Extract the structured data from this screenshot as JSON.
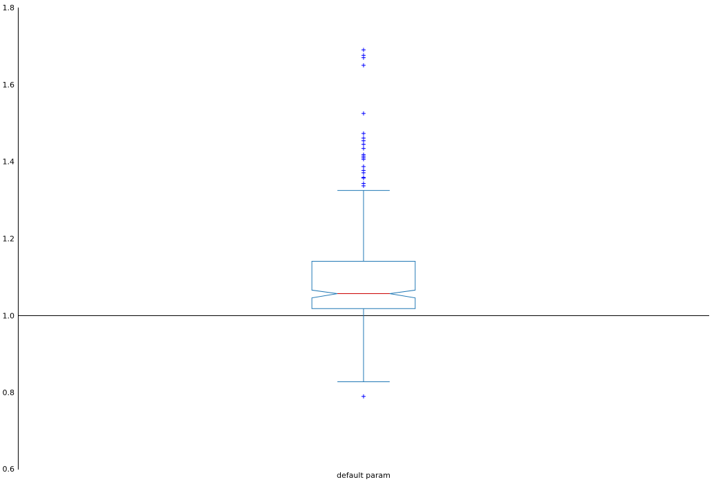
{
  "chart_data": {
    "type": "boxplot",
    "title": "",
    "xlabel": "",
    "ylabel": "",
    "ylim": [
      0.6,
      1.8
    ],
    "yticks": [
      0.6,
      0.8,
      1.0,
      1.2,
      1.4,
      1.6,
      1.8
    ],
    "ytick_labels": [
      "0.6",
      "0.8",
      "1.0",
      "1.2",
      "1.4",
      "1.6",
      "1.8"
    ],
    "grid": false,
    "categories": [
      "default param"
    ],
    "boxes": [
      {
        "category": "default param",
        "notched": true,
        "whisker_low": 0.828,
        "q1": 1.018,
        "notch_low": 1.046,
        "median": 1.057,
        "notch_high": 1.066,
        "q3": 1.141,
        "whisker_high": 1.325,
        "outliers": [
          0.79,
          1.337,
          1.343,
          1.357,
          1.359,
          1.371,
          1.377,
          1.387,
          1.406,
          1.41,
          1.414,
          1.418,
          1.434,
          1.445,
          1.454,
          1.461,
          1.473,
          1.525,
          1.65,
          1.67,
          1.676,
          1.69
        ]
      }
    ],
    "reference_line": {
      "y": 1.0
    },
    "colors": {
      "box": "#1f77b4",
      "median": "#cc0000",
      "outlier": "#0000ff",
      "reference_line": "#000000",
      "axis": "#000000"
    }
  }
}
